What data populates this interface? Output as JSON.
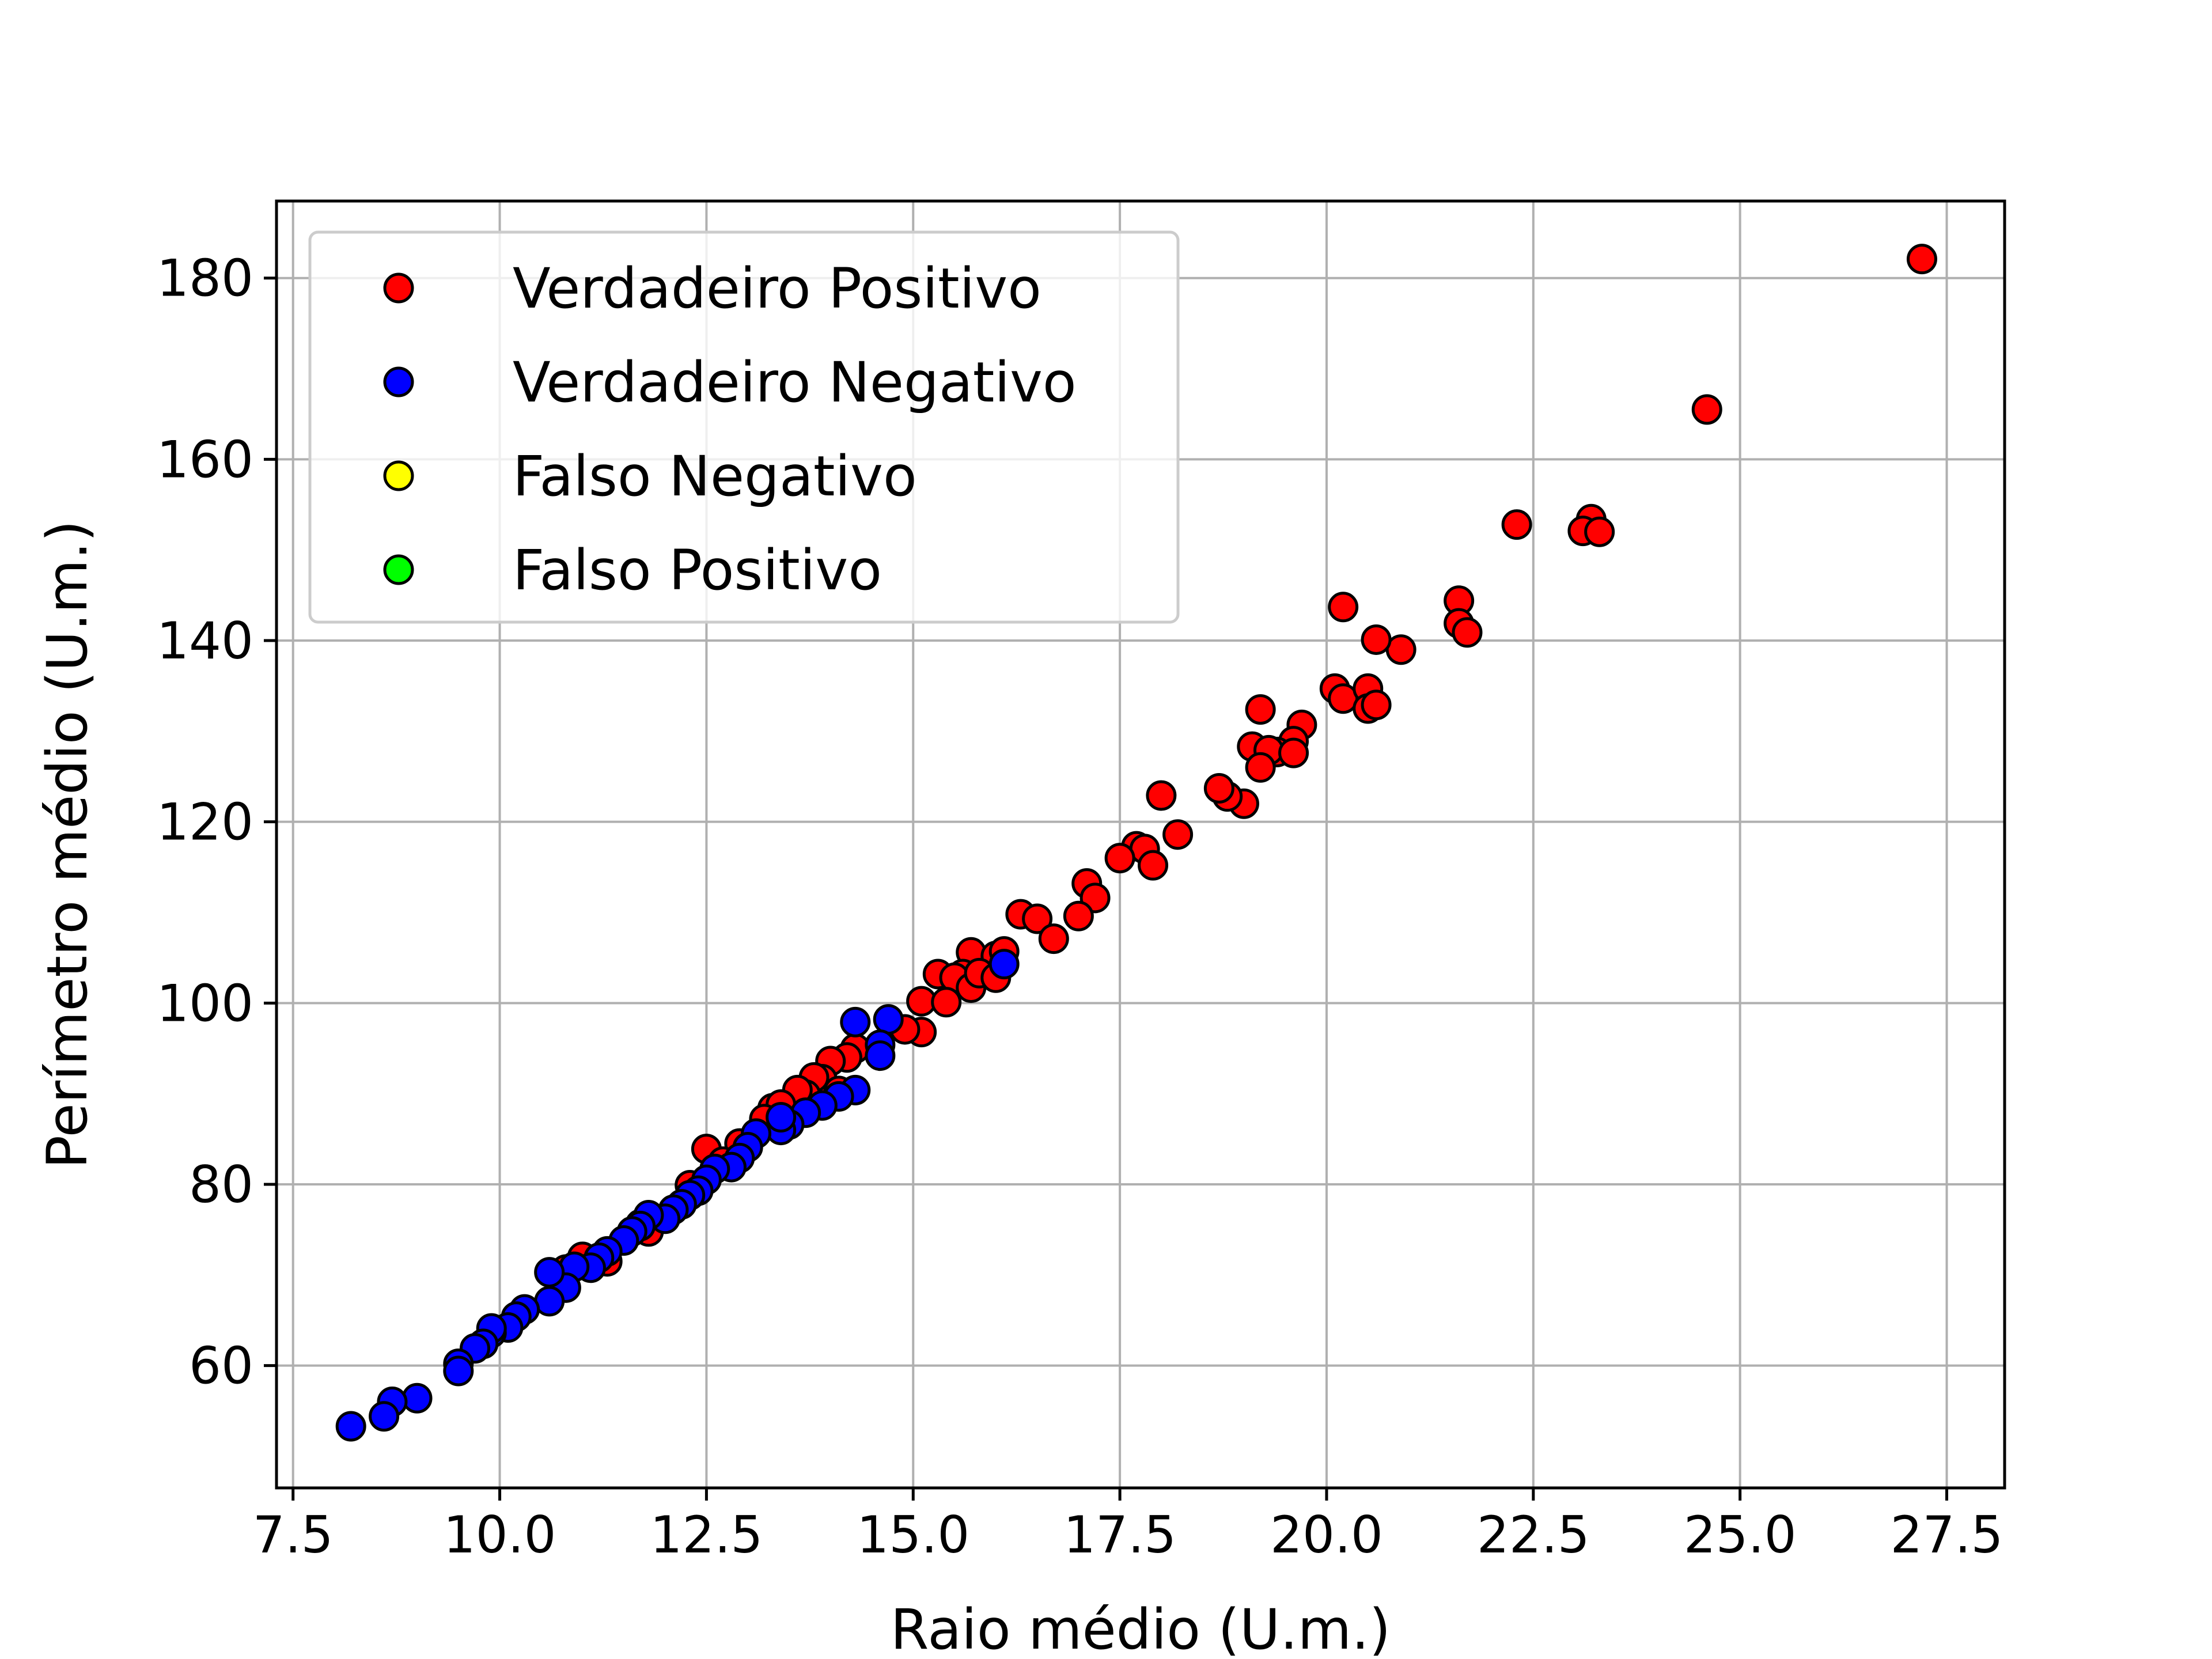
{
  "chart_data": {
    "type": "scatter",
    "title": "",
    "xlabel": "Raio médio (U.m.)",
    "ylabel": "Perímetro médio (U.m.)",
    "xlim": [
      7.3,
      28.2
    ],
    "ylim": [
      46.5,
      188.5
    ],
    "xticks": [
      7.5,
      10.0,
      12.5,
      15.0,
      17.5,
      20.0,
      22.5,
      25.0,
      27.5
    ],
    "xtick_labels": [
      "7.5",
      "10.0",
      "12.5",
      "15.0",
      "17.5",
      "20.0",
      "22.5",
      "25.0",
      "27.5"
    ],
    "yticks": [
      60,
      80,
      100,
      120,
      140,
      160,
      180
    ],
    "ytick_labels": [
      "60",
      "80",
      "100",
      "120",
      "140",
      "160",
      "180"
    ],
    "grid": true,
    "legend_position": "top-left",
    "series": [
      {
        "name": "Verdadeiro Positivo",
        "color": "#ff0000",
        "points": [
          [
            27.2,
            182.1
          ],
          [
            24.6,
            165.5
          ],
          [
            23.2,
            153.4
          ],
          [
            23.1,
            152.1
          ],
          [
            23.3,
            152.0
          ],
          [
            22.3,
            152.8
          ],
          [
            21.6,
            144.4
          ],
          [
            21.6,
            141.9
          ],
          [
            21.7,
            140.9
          ],
          [
            20.9,
            139.0
          ],
          [
            20.6,
            140.1
          ],
          [
            20.2,
            143.7
          ],
          [
            20.1,
            134.7
          ],
          [
            20.2,
            133.6
          ],
          [
            20.5,
            134.7
          ],
          [
            20.5,
            132.5
          ],
          [
            20.6,
            132.9
          ],
          [
            19.2,
            132.4
          ],
          [
            19.7,
            130.7
          ],
          [
            19.6,
            128.9
          ],
          [
            19.4,
            127.7
          ],
          [
            19.1,
            128.3
          ],
          [
            19.3,
            127.9
          ],
          [
            19.6,
            127.6
          ],
          [
            19.2,
            126.0
          ],
          [
            19.0,
            122.0
          ],
          [
            18.8,
            122.8
          ],
          [
            18.7,
            123.7
          ],
          [
            18.0,
            122.9
          ],
          [
            18.2,
            118.6
          ],
          [
            17.7,
            117.3
          ],
          [
            17.8,
            117.0
          ],
          [
            17.5,
            116.0
          ],
          [
            17.9,
            115.2
          ],
          [
            17.1,
            113.2
          ],
          [
            17.2,
            111.6
          ],
          [
            17.0,
            109.6
          ],
          [
            16.3,
            109.8
          ],
          [
            16.5,
            109.3
          ],
          [
            16.7,
            107.1
          ],
          [
            15.7,
            105.6
          ],
          [
            16.0,
            105.2
          ],
          [
            16.1,
            105.7
          ],
          [
            15.6,
            103.2
          ],
          [
            15.3,
            103.2
          ],
          [
            15.5,
            102.8
          ],
          [
            15.7,
            101.7
          ],
          [
            15.8,
            103.3
          ],
          [
            16.0,
            102.8
          ],
          [
            15.1,
            100.2
          ],
          [
            15.4,
            100.1
          ],
          [
            15.1,
            96.8
          ],
          [
            14.9,
            97.1
          ],
          [
            14.3,
            95.0
          ],
          [
            14.2,
            94.0
          ],
          [
            14.0,
            93.6
          ],
          [
            13.9,
            91.6
          ],
          [
            13.8,
            91.8
          ],
          [
            14.1,
            90.3
          ],
          [
            13.7,
            89.9
          ],
          [
            13.6,
            90.4
          ],
          [
            13.3,
            88.4
          ],
          [
            13.4,
            88.8
          ],
          [
            13.2,
            87.2
          ],
          [
            12.9,
            84.5
          ],
          [
            12.5,
            83.9
          ],
          [
            12.7,
            82.5
          ],
          [
            12.3,
            79.9
          ],
          [
            11.7,
            75.6
          ],
          [
            11.8,
            74.8
          ],
          [
            11.0,
            72.0
          ],
          [
            11.3,
            71.5
          ],
          [
            10.8,
            70.6
          ]
        ]
      },
      {
        "name": "Verdadeiro Negativo",
        "color": "#0000ff",
        "points": [
          [
            16.1,
            104.3
          ],
          [
            14.3,
            97.9
          ],
          [
            14.7,
            98.2
          ],
          [
            14.6,
            95.4
          ],
          [
            14.6,
            94.2
          ],
          [
            14.3,
            90.4
          ],
          [
            14.1,
            89.7
          ],
          [
            13.9,
            88.7
          ],
          [
            13.7,
            87.9
          ],
          [
            13.5,
            86.6
          ],
          [
            13.4,
            86.0
          ],
          [
            13.4,
            87.4
          ],
          [
            13.1,
            85.6
          ],
          [
            13.0,
            84.1
          ],
          [
            12.9,
            82.9
          ],
          [
            12.8,
            81.9
          ],
          [
            12.6,
            81.7
          ],
          [
            12.5,
            80.5
          ],
          [
            12.4,
            79.3
          ],
          [
            12.3,
            78.8
          ],
          [
            12.2,
            77.8
          ],
          [
            12.1,
            77.2
          ],
          [
            12.0,
            76.2
          ],
          [
            11.8,
            76.6
          ],
          [
            11.7,
            75.4
          ],
          [
            11.6,
            74.8
          ],
          [
            11.5,
            73.8
          ],
          [
            11.3,
            72.6
          ],
          [
            11.2,
            71.9
          ],
          [
            11.1,
            70.8
          ],
          [
            10.9,
            70.9
          ],
          [
            10.8,
            68.6
          ],
          [
            10.6,
            70.3
          ],
          [
            10.6,
            67.1
          ],
          [
            10.3,
            66.2
          ],
          [
            10.2,
            65.4
          ],
          [
            10.1,
            64.2
          ],
          [
            9.9,
            63.6
          ],
          [
            9.9,
            64.1
          ],
          [
            9.8,
            62.4
          ],
          [
            9.7,
            61.9
          ],
          [
            9.5,
            60.2
          ],
          [
            9.5,
            59.4
          ],
          [
            9.0,
            56.4
          ],
          [
            8.7,
            56.0
          ],
          [
            8.6,
            54.4
          ],
          [
            8.2,
            53.3
          ]
        ]
      },
      {
        "name": "Falso Negativo",
        "color": "#ffff00",
        "points": []
      },
      {
        "name": "Falso Positivo",
        "color": "#00ff00",
        "points": []
      }
    ]
  }
}
